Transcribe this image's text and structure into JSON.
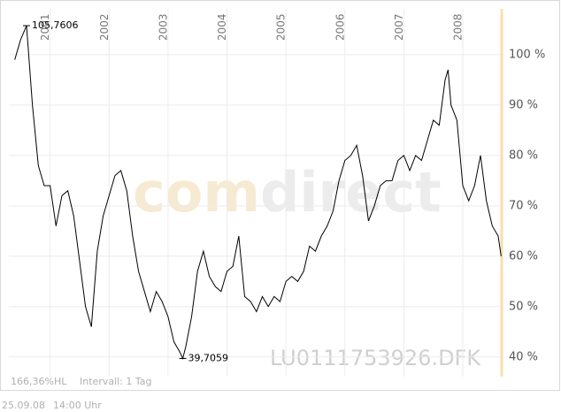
{
  "chart_data": {
    "type": "line",
    "logo": [
      "com",
      "direct"
    ],
    "symbol": "LU0111753926.DFK",
    "info": [
      "166,36%HL",
      "Intervall: 1 Tag"
    ],
    "timestamp": [
      "25.09.08",
      "14:00 Uhr"
    ],
    "x": [
      2000.4,
      2000.5,
      2000.6,
      2000.7,
      2000.8,
      2000.9,
      2001.0,
      2001.1,
      2001.2,
      2001.3,
      2001.4,
      2001.5,
      2001.6,
      2001.7,
      2001.8,
      2001.9,
      2002.0,
      2002.1,
      2002.2,
      2002.3,
      2002.4,
      2002.5,
      2002.6,
      2002.7,
      2002.8,
      2002.9,
      2003.0,
      2003.1,
      2003.2,
      2003.25,
      2003.3,
      2003.4,
      2003.5,
      2003.6,
      2003.7,
      2003.8,
      2003.9,
      2004.0,
      2004.1,
      2004.2,
      2004.3,
      2004.4,
      2004.5,
      2004.6,
      2004.7,
      2004.8,
      2004.9,
      2005.0,
      2005.1,
      2005.2,
      2005.3,
      2005.4,
      2005.5,
      2005.6,
      2005.7,
      2005.8,
      2005.9,
      2006.0,
      2006.1,
      2006.2,
      2006.3,
      2006.4,
      2006.5,
      2006.6,
      2006.7,
      2006.8,
      2006.9,
      2007.0,
      2007.1,
      2007.2,
      2007.3,
      2007.4,
      2007.5,
      2007.6,
      2007.7,
      2007.75,
      2007.8,
      2007.9,
      2008.0,
      2008.1,
      2008.2,
      2008.3,
      2008.4,
      2008.5,
      2008.6,
      2008.65
    ],
    "series": [
      {
        "color": "#000000",
        "values": [
          99,
          103,
          105.7606,
          90,
          78,
          74,
          74,
          66,
          72,
          73,
          68,
          59,
          50,
          46,
          61,
          68,
          72,
          76,
          77,
          73,
          64,
          57,
          53,
          49,
          53,
          51,
          48,
          43,
          41,
          39.7059,
          42,
          48,
          57,
          61,
          56,
          54,
          53,
          57,
          58,
          64,
          52,
          51,
          49,
          52,
          50,
          52,
          51,
          55,
          56,
          55,
          57,
          62,
          61,
          64,
          66,
          69,
          75,
          79,
          80,
          82,
          76,
          67,
          70,
          74,
          75,
          75,
          79,
          80,
          77,
          80,
          79,
          83,
          87,
          86,
          95,
          97,
          90,
          87,
          74,
          71,
          74,
          80,
          71,
          66,
          64,
          60
        ],
        "value_labels": [
          null,
          null,
          "105,7606",
          null,
          null,
          null,
          null,
          null,
          null,
          null,
          null,
          null,
          null,
          null,
          null,
          null,
          null,
          null,
          null,
          null,
          null,
          null,
          null,
          null,
          null,
          null,
          null,
          null,
          null,
          "39,7059",
          null,
          null,
          null,
          null,
          null,
          null,
          null,
          null,
          null,
          null,
          null,
          null,
          null,
          null,
          null,
          null,
          null,
          null,
          null,
          null,
          null,
          null,
          null,
          null,
          null,
          null,
          null,
          null,
          null,
          null,
          null,
          null,
          null,
          null,
          null,
          null,
          null,
          null,
          null,
          null,
          null,
          null,
          null,
          null,
          null,
          null,
          null,
          null,
          null,
          null,
          null,
          null,
          null,
          null,
          null,
          null
        ]
      }
    ],
    "xlim": [
      2000.3,
      2008.66
    ],
    "xticks": [
      2001,
      2002,
      2003,
      2004,
      2005,
      2006,
      2007,
      2008
    ],
    "ylim": [
      36.1,
      109.1
    ],
    "yticks": [
      {
        "value": 40,
        "label": "40 %"
      },
      {
        "value": 50,
        "label": "50 %"
      },
      {
        "value": 60,
        "label": "60 %"
      },
      {
        "value": 70,
        "label": "70 %"
      },
      {
        "value": 80,
        "label": "80 %"
      },
      {
        "value": 90,
        "label": "90 %"
      },
      {
        "value": 100,
        "label": "100 %"
      }
    ],
    "grid": true
  }
}
